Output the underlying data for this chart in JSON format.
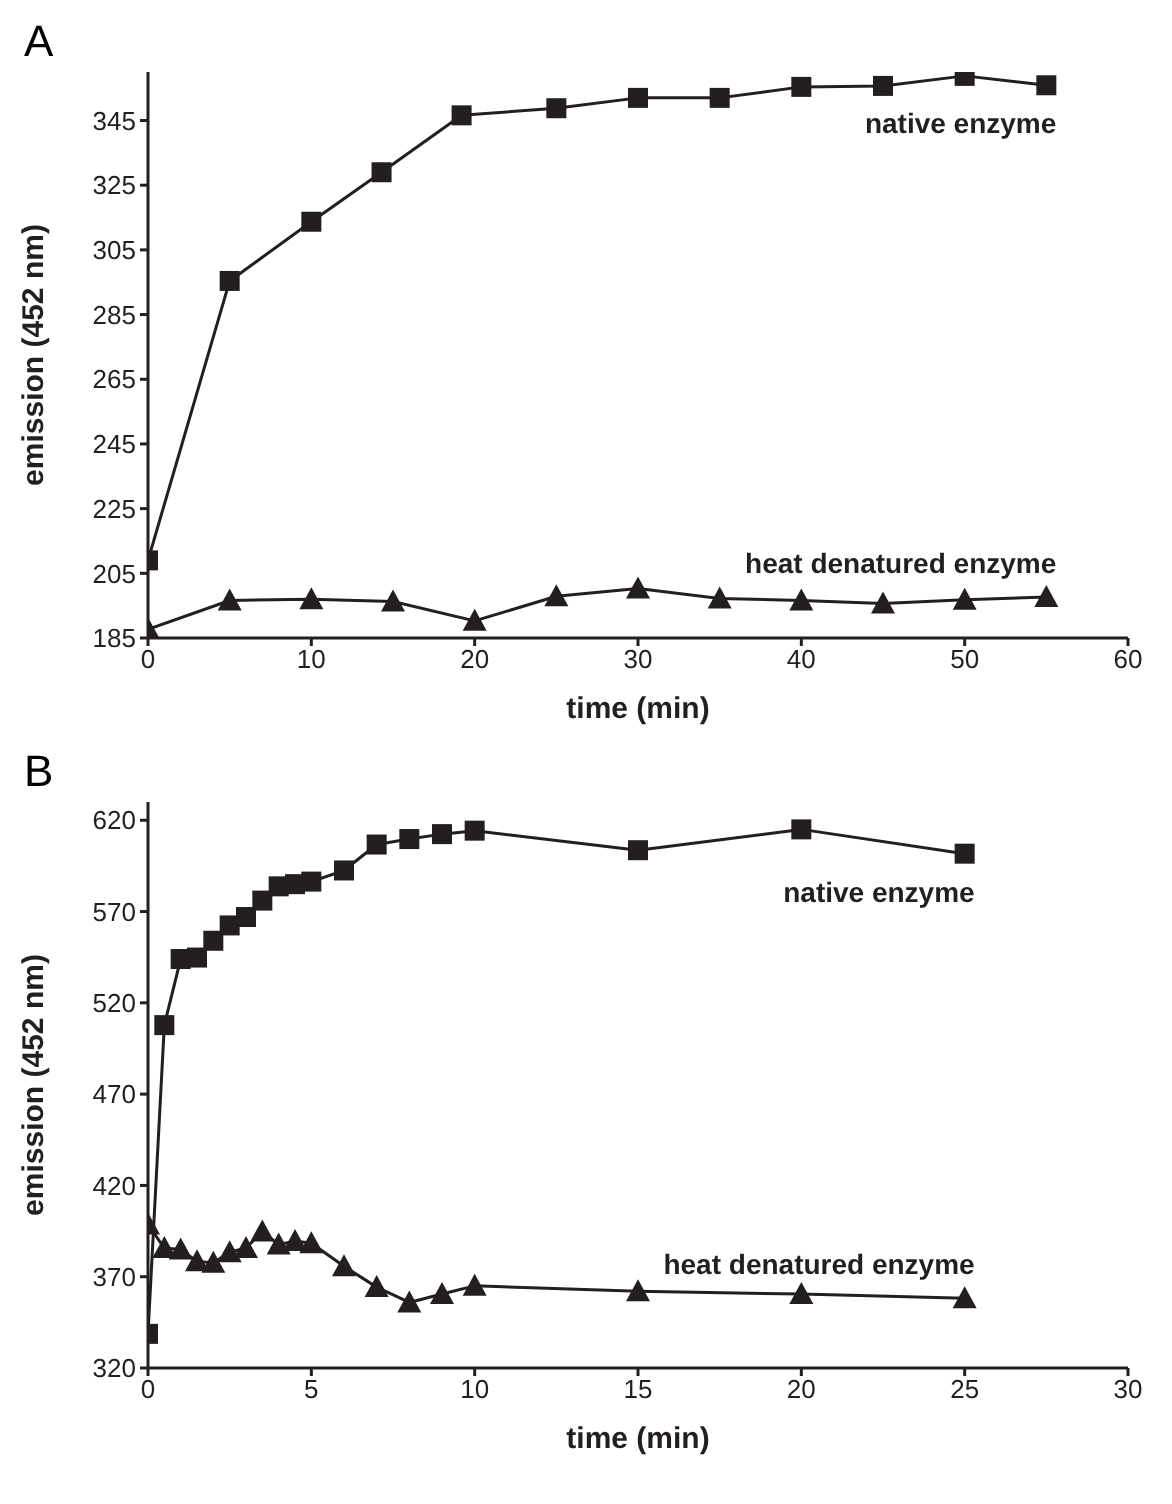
{
  "chart_data": [
    {
      "type": "line",
      "title": "A",
      "xlabel": "time (min)",
      "ylabel": "emission (452 nm)",
      "xlim": [
        0,
        60
      ],
      "xticks": [
        0,
        10,
        20,
        30,
        40,
        50,
        60
      ],
      "ylim": [
        185,
        360
      ],
      "yticks": [
        185,
        205,
        225,
        245,
        265,
        285,
        305,
        325,
        345
      ],
      "grid": false,
      "legend": false,
      "series": [
        {
          "name": "native enzyme",
          "color": "#231f20",
          "marker": "square",
          "x": [
            0,
            5,
            10,
            14.3,
            19.2,
            25,
            30,
            35,
            40,
            45,
            50,
            55
          ],
          "values": [
            209,
            295.4,
            313.7,
            329,
            346.6,
            348.8,
            352,
            352,
            355.4,
            355.7,
            358.8,
            355.9
          ]
        },
        {
          "name": "heat denatured enzyme",
          "color": "#231f20",
          "marker": "triangle",
          "x": [
            0,
            5,
            10,
            15,
            20,
            25,
            30,
            35,
            40,
            45,
            50,
            55
          ],
          "values": [
            187.7,
            196.6,
            197,
            196.3,
            190.3,
            197.9,
            200.3,
            197.2,
            196.6,
            195.7,
            196.8,
            197.7
          ]
        }
      ]
    },
    {
      "type": "line",
      "title": "B",
      "xlabel": "time (min)",
      "ylabel": "emission (452 nm)",
      "xlim": [
        0,
        30
      ],
      "xticks": [
        0,
        5,
        10,
        15,
        20,
        25,
        30
      ],
      "ylim": [
        320,
        630
      ],
      "yticks": [
        320,
        370,
        420,
        470,
        520,
        570,
        620
      ],
      "grid": false,
      "legend": false,
      "series": [
        {
          "name": "native enzyme",
          "color": "#231f20",
          "marker": "square",
          "x": [
            0,
            0.5,
            1,
            1.5,
            2,
            2.5,
            3,
            3.5,
            4,
            4.5,
            5,
            6,
            7,
            8,
            9,
            10,
            15,
            20,
            25
          ],
          "values": [
            338.7,
            507.8,
            544,
            544.8,
            554,
            562.4,
            567,
            576,
            583.8,
            585,
            586.4,
            592.5,
            606.7,
            609.7,
            612.4,
            614.3,
            603.6,
            615,
            601.7
          ]
        },
        {
          "name": "heat denatured enzyme",
          "color": "#231f20",
          "marker": "triangle",
          "x": [
            0,
            0.5,
            1,
            1.5,
            2,
            2.5,
            3,
            3.5,
            4,
            4.5,
            5,
            6,
            7,
            8,
            9,
            10,
            15,
            20,
            25
          ],
          "values": [
            398.6,
            385.7,
            384.9,
            378.4,
            377.6,
            383.4,
            385.7,
            394.8,
            387.6,
            389.5,
            388.3,
            375.7,
            364.3,
            355.9,
            360.5,
            365,
            362,
            360.5,
            358.2
          ]
        }
      ]
    }
  ]
}
